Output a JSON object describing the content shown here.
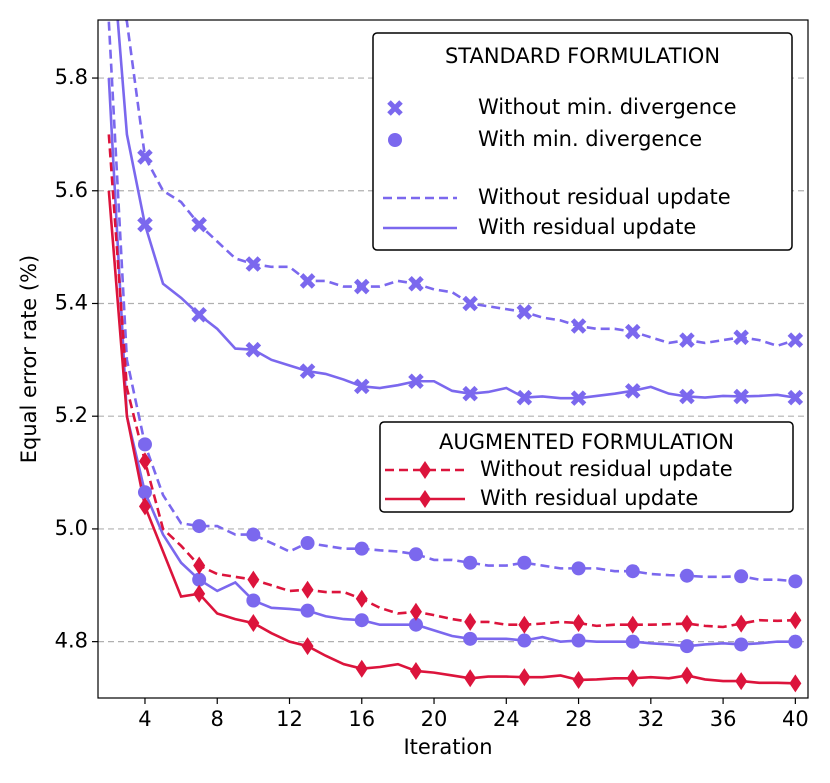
{
  "chart_data": {
    "type": "line",
    "xlabel": "Iteration",
    "ylabel": "Equal error rate (%)",
    "xlim": [
      1.4,
      40.7
    ],
    "ylim": [
      4.7,
      5.903
    ],
    "xticks": [
      4,
      8,
      12,
      16,
      20,
      24,
      28,
      32,
      36,
      40
    ],
    "yticks": [
      4.8,
      {
        "value": 5,
        "label": "5.0"
      },
      5.2,
      5.4,
      5.6,
      5.8
    ],
    "grid": true,
    "x": [
      2,
      3,
      4,
      5,
      6,
      7,
      8,
      9,
      10,
      11,
      12,
      13,
      14,
      15,
      16,
      17,
      18,
      19,
      20,
      21,
      22,
      23,
      24,
      25,
      26,
      27,
      28,
      29,
      30,
      31,
      32,
      33,
      34,
      35,
      36,
      37,
      38,
      39,
      40
    ],
    "marker_x": [
      4,
      7,
      10,
      13,
      16,
      19,
      22,
      25,
      28,
      31,
      34,
      37,
      40
    ],
    "series": [
      {
        "color": "#7b68ee",
        "linestyle": "dashed",
        "marker": "x",
        "values": [
          6.0,
          5.9,
          5.66,
          5.6,
          5.58,
          5.54,
          5.51,
          5.48,
          5.47,
          5.465,
          5.465,
          5.44,
          5.44,
          5.43,
          5.43,
          5.43,
          5.44,
          5.435,
          5.425,
          5.42,
          5.4,
          5.395,
          5.39,
          5.385,
          5.375,
          5.37,
          5.36,
          5.355,
          5.355,
          5.35,
          5.34,
          5.33,
          5.335,
          5.33,
          5.335,
          5.34,
          5.335,
          5.325,
          5.335
        ]
      },
      {
        "color": "#7b68ee",
        "linestyle": "solid",
        "marker": "x",
        "values": [
          6.1,
          5.7,
          5.54,
          5.435,
          5.41,
          5.38,
          5.355,
          5.32,
          5.318,
          5.3,
          5.29,
          5.28,
          5.275,
          5.265,
          5.253,
          5.25,
          5.255,
          5.262,
          5.262,
          5.245,
          5.24,
          5.243,
          5.25,
          5.233,
          5.235,
          5.232,
          5.232,
          5.236,
          5.24,
          5.245,
          5.252,
          5.24,
          5.235,
          5.233,
          5.236,
          5.235,
          5.236,
          5.238,
          5.233
        ]
      },
      {
        "color": "#7b68ee",
        "linestyle": "dashed",
        "marker": "o",
        "values": [
          5.9,
          5.3,
          5.15,
          5.06,
          5.01,
          5.005,
          5.005,
          4.99,
          4.99,
          4.975,
          4.96,
          4.975,
          4.97,
          4.965,
          4.965,
          4.962,
          4.96,
          4.955,
          4.945,
          4.945,
          4.94,
          4.935,
          4.935,
          4.94,
          4.935,
          4.93,
          4.93,
          4.93,
          4.925,
          4.925,
          4.92,
          4.918,
          4.917,
          4.915,
          4.915,
          4.916,
          4.91,
          4.91,
          4.907
        ]
      },
      {
        "color": "#7b68ee",
        "linestyle": "solid",
        "marker": "o",
        "values": [
          5.8,
          5.2,
          5.065,
          4.99,
          4.94,
          4.91,
          4.89,
          4.905,
          4.873,
          4.86,
          4.858,
          4.855,
          4.845,
          4.84,
          4.838,
          4.83,
          4.83,
          4.83,
          4.82,
          4.81,
          4.805,
          4.805,
          4.805,
          4.802,
          4.808,
          4.8,
          4.802,
          4.8,
          4.8,
          4.8,
          4.797,
          4.795,
          4.792,
          4.795,
          4.797,
          4.795,
          4.797,
          4.8,
          4.8
        ]
      },
      {
        "color": "#dc143c",
        "linestyle": "dashed",
        "marker": "d",
        "values": [
          5.7,
          5.25,
          5.12,
          5.0,
          4.97,
          4.935,
          4.92,
          4.915,
          4.91,
          4.9,
          4.89,
          4.892,
          4.888,
          4.888,
          4.876,
          4.86,
          4.85,
          4.853,
          4.847,
          4.84,
          4.835,
          4.835,
          4.83,
          4.83,
          4.832,
          4.835,
          4.833,
          4.828,
          4.83,
          4.83,
          4.83,
          4.831,
          4.832,
          4.828,
          4.826,
          4.832,
          4.838,
          4.837,
          4.838
        ]
      },
      {
        "color": "#dc143c",
        "linestyle": "solid",
        "marker": "d",
        "values": [
          5.6,
          5.2,
          5.04,
          4.96,
          4.88,
          4.885,
          4.85,
          4.84,
          4.833,
          4.815,
          4.8,
          4.792,
          4.775,
          4.76,
          4.752,
          4.755,
          4.76,
          4.748,
          4.745,
          4.74,
          4.735,
          4.738,
          4.738,
          4.737,
          4.737,
          4.74,
          4.732,
          4.733,
          4.735,
          4.735,
          4.737,
          4.735,
          4.74,
          4.733,
          4.73,
          4.73,
          4.727,
          4.727,
          4.726
        ]
      }
    ],
    "legends": [
      {
        "title": "STANDARD FORMULATION",
        "color": "#7b68ee",
        "entries": [
          {
            "label": "Without min. divergence",
            "marker": "x"
          },
          {
            "label": "With min. divergence",
            "marker": "o"
          },
          {
            "label": "Without residual update",
            "linestyle": "dashed"
          },
          {
            "label": "With residual update",
            "linestyle": "solid"
          }
        ]
      },
      {
        "title": "AUGMENTED FORMULATION",
        "color": "#dc143c",
        "entries": [
          {
            "label": "Without residual update",
            "linestyle": "dashed",
            "marker": "d"
          },
          {
            "label": "With residual update",
            "linestyle": "solid",
            "marker": "d"
          }
        ]
      }
    ]
  }
}
